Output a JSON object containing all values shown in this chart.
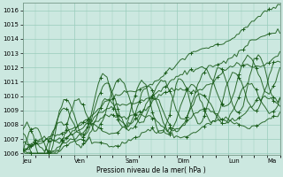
{
  "bg_color": "#cce8e0",
  "grid_color": "#99ccbb",
  "line_color": "#1a5c1a",
  "ylabel": "Pression niveau de la mer( hPa )",
  "ylim": [
    1006,
    1016.5
  ],
  "yticks": [
    1006,
    1007,
    1008,
    1009,
    1010,
    1011,
    1012,
    1013,
    1014,
    1015,
    1016
  ],
  "xtick_labels": [
    "Jeu",
    "Ven",
    "Sam",
    "Dim",
    "Lun",
    "Ma"
  ],
  "total_hours": 120,
  "day_hours": [
    0,
    24,
    48,
    72,
    96,
    114
  ]
}
